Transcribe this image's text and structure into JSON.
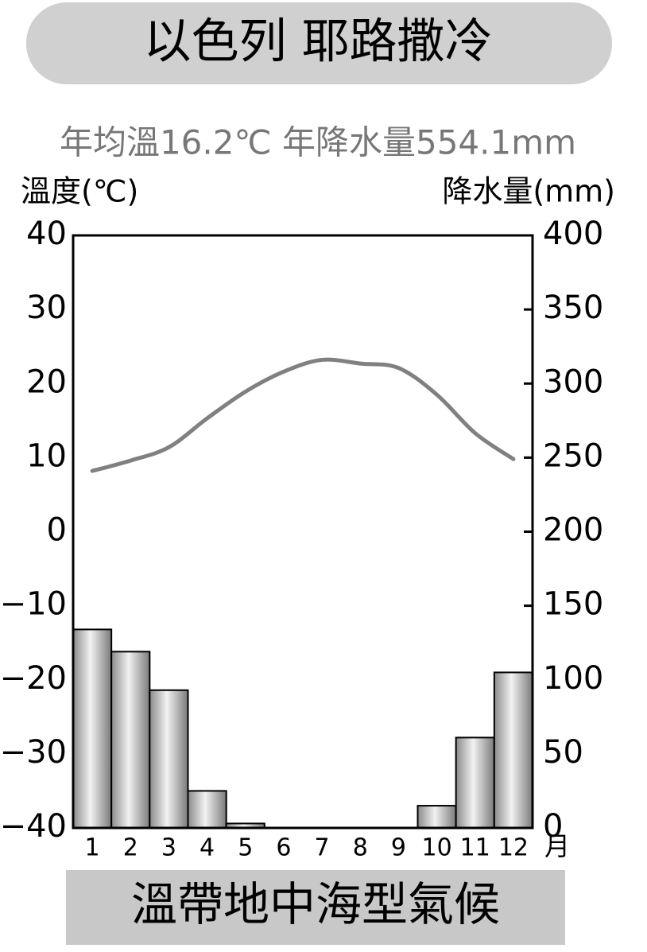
{
  "chart_data": {
    "type": "bar",
    "title": "以色列 耶路撒冷",
    "subtitle": "年均溫16.2℃ 年降水量554.1mm",
    "y_label": "溫度(℃)",
    "y2_label": "降水量(mm)",
    "x_label": "月",
    "footer": "溫帶地中海型氣候",
    "categories": [
      "1",
      "2",
      "3",
      "4",
      "5",
      "6",
      "7",
      "8",
      "9",
      "10",
      "11",
      "12"
    ],
    "series": [
      {
        "type": "bar",
        "axis": "y2",
        "color": "#b0b0b0",
        "values": [
          134,
          119,
          93,
          25,
          3,
          0,
          0,
          0,
          0,
          15,
          61,
          105
        ]
      },
      {
        "type": "line",
        "color": "#808080",
        "values": [
          8.2,
          9.6,
          11.4,
          15.3,
          18.9,
          21.6,
          23.2,
          22.7,
          22.1,
          18.5,
          13.3,
          9.8
        ]
      }
    ],
    "ylim": [
      -40,
      40
    ],
    "yticks": [
      {
        "value": -40,
        "label": "−40"
      },
      {
        "value": -30,
        "label": "−30"
      },
      {
        "value": -20,
        "label": "−20"
      },
      {
        "value": -10,
        "label": "−10"
      },
      0,
      10,
      20,
      30,
      40
    ],
    "y2lim": [
      0,
      400
    ],
    "y2ticks": [
      0,
      50,
      100,
      150,
      200,
      250,
      300,
      350,
      400
    ]
  }
}
